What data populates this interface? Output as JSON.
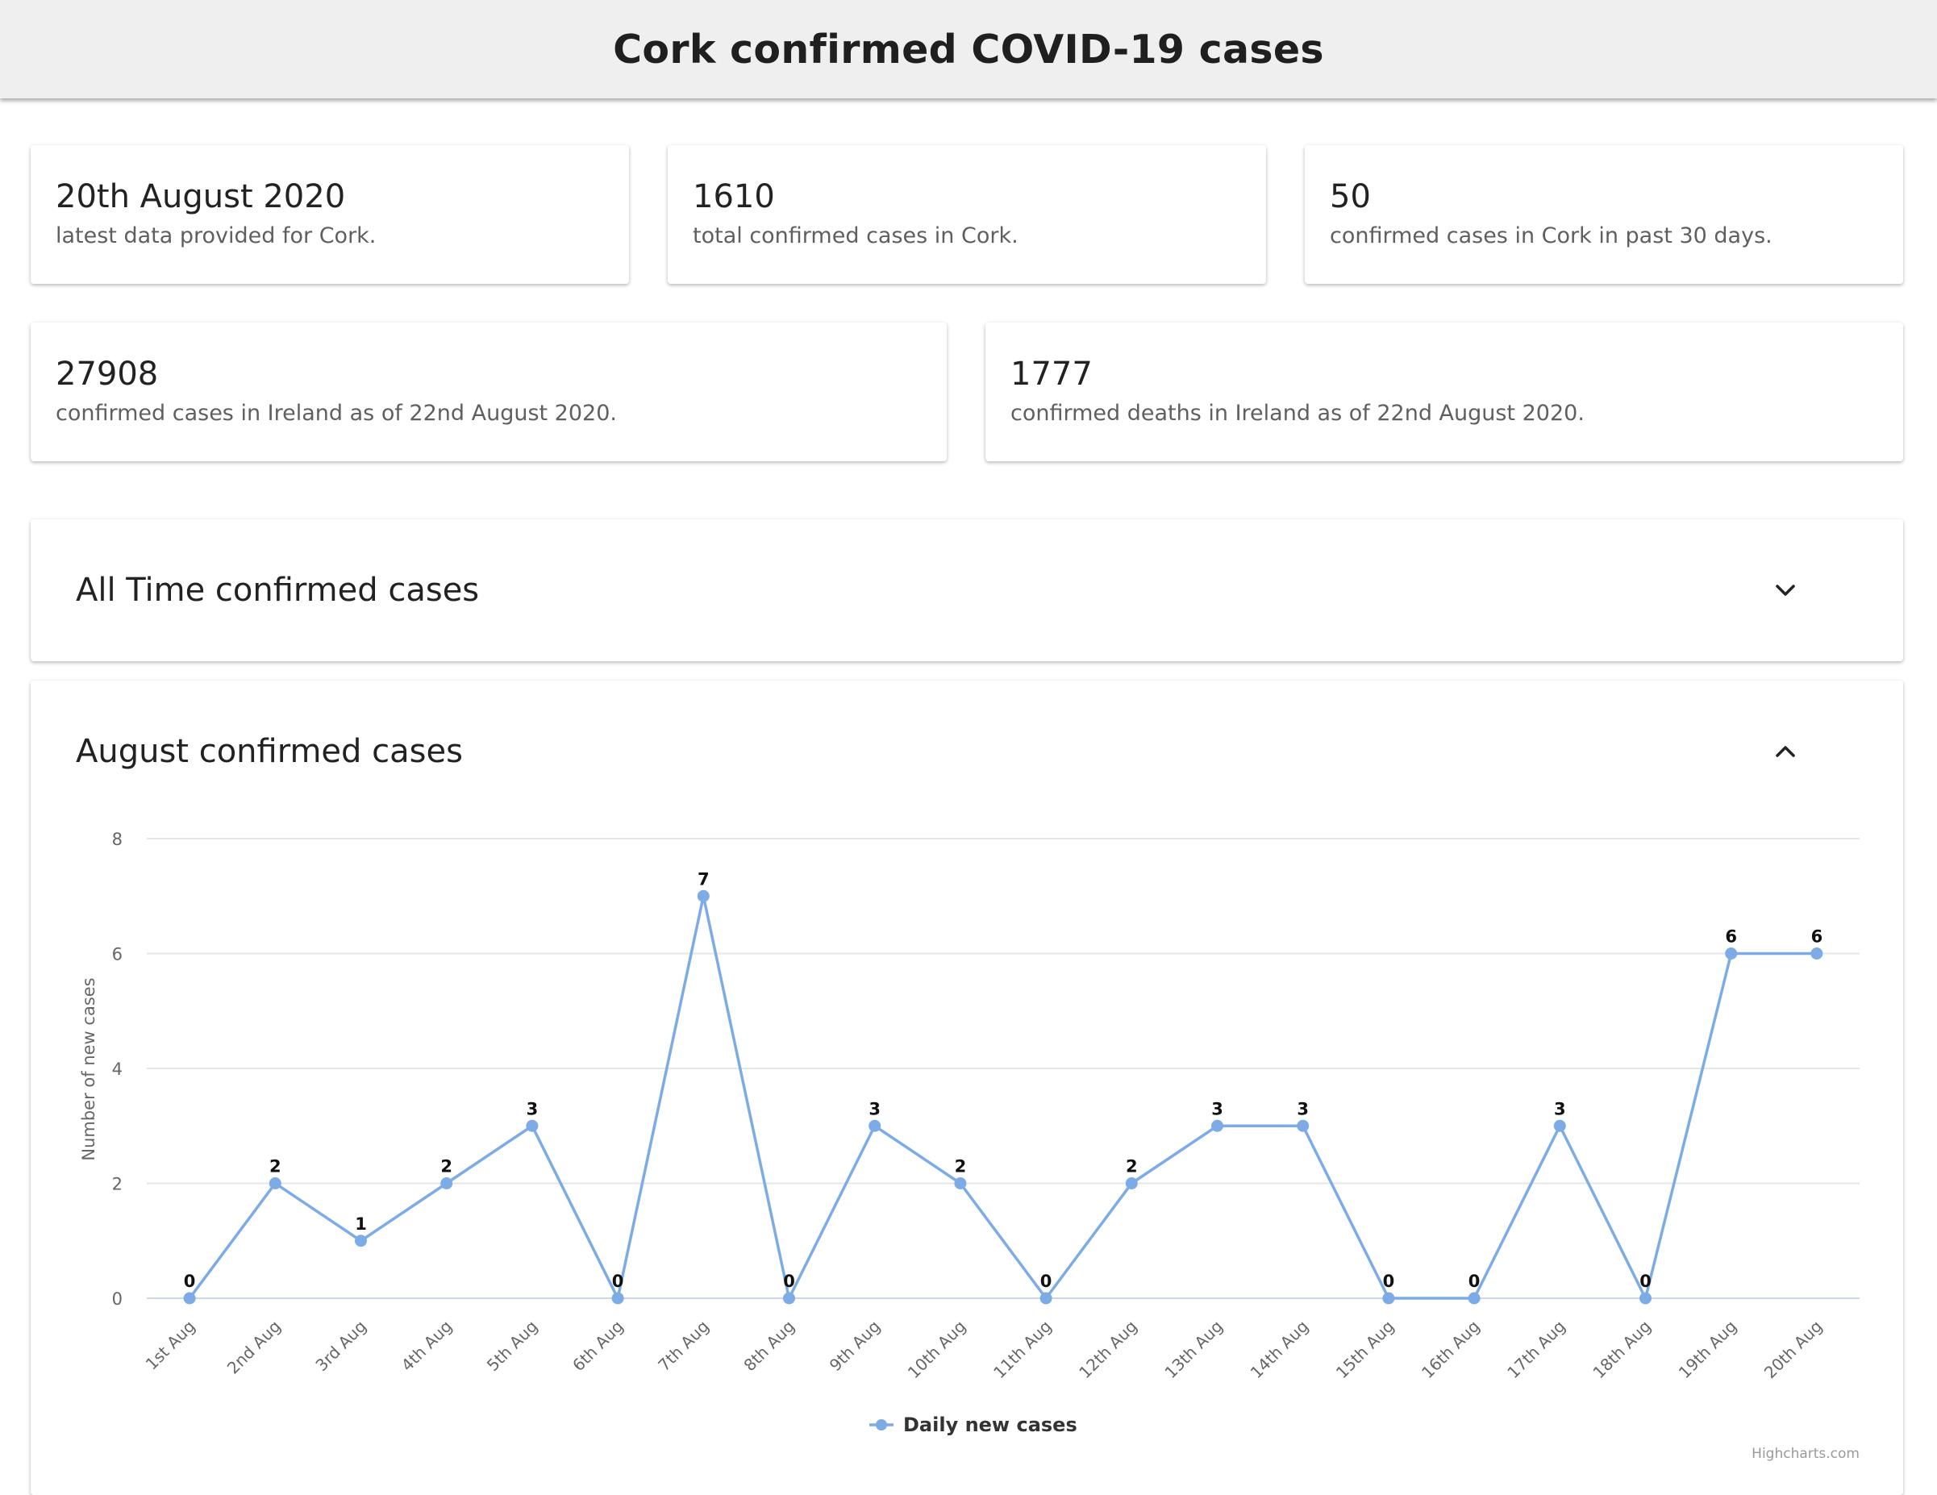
{
  "header": {
    "title": "Cork confirmed COVID-19 cases"
  },
  "stats_row1": [
    {
      "value": "20th August 2020",
      "desc": "latest data provided for Cork."
    },
    {
      "value": "1610",
      "desc": "total confirmed cases in Cork."
    },
    {
      "value": "50",
      "desc": "confirmed cases in Cork in past 30 days."
    }
  ],
  "stats_row2": [
    {
      "value": "27908",
      "desc": "confirmed cases in Ireland as of 22nd August 2020."
    },
    {
      "value": "1777",
      "desc": "confirmed deaths in Ireland as of 22nd August 2020."
    }
  ],
  "panels": {
    "all_time": {
      "title": "All Time confirmed cases",
      "icon": "chevron-down-icon"
    },
    "august": {
      "title": "August confirmed cases",
      "icon": "chevron-up-icon"
    }
  },
  "credit": "Highcharts.com",
  "chart_data": {
    "type": "line",
    "categories": [
      "1st Aug",
      "2nd Aug",
      "3rd Aug",
      "4th Aug",
      "5th Aug",
      "6th Aug",
      "7th Aug",
      "8th Aug",
      "9th Aug",
      "10th Aug",
      "11th Aug",
      "12th Aug",
      "13th Aug",
      "14th Aug",
      "15th Aug",
      "16th Aug",
      "17th Aug",
      "18th Aug",
      "19th Aug",
      "20th Aug"
    ],
    "series": [
      {
        "name": "Daily new cases",
        "values": [
          0,
          2,
          1,
          2,
          3,
          0,
          7,
          0,
          3,
          2,
          0,
          2,
          3,
          3,
          0,
          0,
          3,
          0,
          6,
          6
        ],
        "color": "#7cabe5"
      }
    ],
    "ylabel": "Number of new cases",
    "xlabel": "",
    "ylim": [
      0,
      8
    ],
    "yticks": [
      0,
      2,
      4,
      6,
      8
    ],
    "grid": true,
    "data_labels": true,
    "legend": "bottom-center"
  }
}
